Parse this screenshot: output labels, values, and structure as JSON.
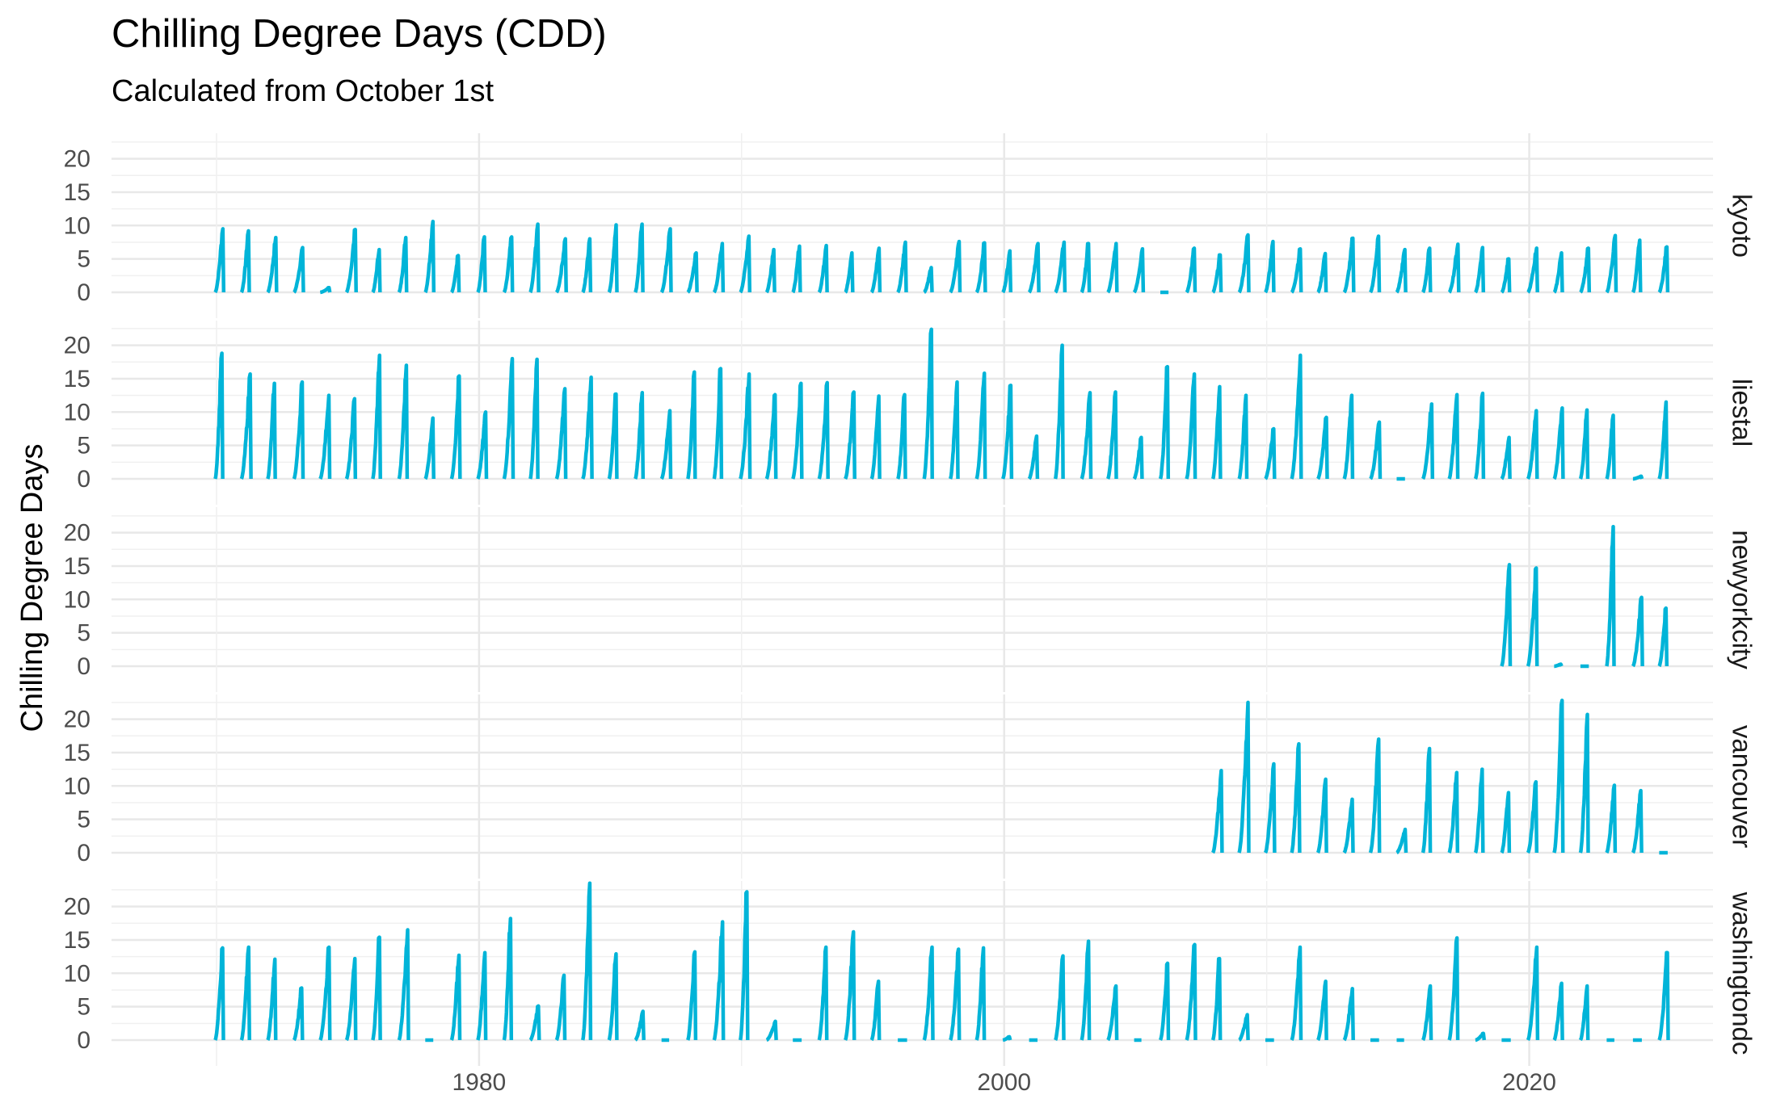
{
  "chart_data": {
    "type": "line",
    "title": "Chilling Degree Days (CDD)",
    "subtitle": "Calculated from October 1st",
    "xlabel": "",
    "ylabel": "Chilling Degree Days",
    "xlim": [
      1966,
      2027
    ],
    "ylim": [
      0,
      24
    ],
    "x_ticks": [
      1980,
      2000,
      2020
    ],
    "y_ticks": [
      0,
      5,
      10,
      15,
      20
    ],
    "grid": true,
    "legend": "none",
    "line_color": "#00B4D8",
    "facets": [
      {
        "name": "kyoto",
        "years": [
          1970,
          1971,
          1972,
          1973,
          1974,
          1975,
          1976,
          1977,
          1978,
          1979,
          1980,
          1981,
          1982,
          1983,
          1984,
          1985,
          1986,
          1987,
          1988,
          1989,
          1990,
          1991,
          1992,
          1993,
          1994,
          1995,
          1996,
          1997,
          1998,
          1999,
          2000,
          2001,
          2002,
          2003,
          2004,
          2005,
          2006,
          2007,
          2008,
          2009,
          2010,
          2011,
          2012,
          2013,
          2014,
          2015,
          2016,
          2017,
          2018,
          2019,
          2020,
          2021,
          2022,
          2023,
          2024,
          2025
        ],
        "peaks": [
          9.5,
          9.2,
          8.2,
          6.7,
          0.7,
          9.4,
          6.4,
          8.2,
          10.6,
          5.5,
          8.3,
          8.3,
          10.2,
          8.0,
          8.0,
          10.1,
          10.2,
          9.5,
          5.9,
          7.3,
          8.4,
          6.4,
          6.9,
          7.0,
          5.9,
          6.6,
          7.5,
          3.7,
          7.6,
          7.4,
          6.2,
          7.3,
          7.5,
          7.3,
          7.3,
          6.5,
          0.0,
          6.6,
          5.6,
          8.6,
          7.6,
          6.5,
          5.8,
          8.1,
          8.4,
          6.4,
          6.6,
          7.2,
          6.7,
          5.0,
          6.6,
          5.9,
          6.6,
          8.5,
          7.8,
          6.8
        ]
      },
      {
        "name": "liestal",
        "years": [
          1970,
          1971,
          1972,
          1973,
          1974,
          1975,
          1976,
          1977,
          1978,
          1979,
          1980,
          1981,
          1982,
          1983,
          1984,
          1985,
          1986,
          1987,
          1988,
          1989,
          1990,
          1991,
          1992,
          1993,
          1994,
          1995,
          1996,
          1997,
          1998,
          1999,
          2000,
          2001,
          2002,
          2003,
          2004,
          2005,
          2006,
          2007,
          2008,
          2009,
          2010,
          2011,
          2012,
          2013,
          2014,
          2015,
          2016,
          2017,
          2018,
          2019,
          2020,
          2021,
          2022,
          2023,
          2024,
          2025
        ],
        "peaks": [
          18.8,
          15.7,
          14.3,
          14.5,
          12.5,
          12.0,
          18.5,
          17.0,
          9.1,
          15.4,
          10.0,
          18.0,
          17.9,
          13.5,
          15.2,
          12.7,
          12.9,
          10.2,
          16.0,
          16.5,
          15.7,
          12.6,
          14.3,
          14.4,
          13.0,
          12.4,
          12.6,
          22.4,
          14.5,
          15.8,
          14.0,
          6.4,
          20.0,
          12.9,
          13.0,
          6.2,
          16.8,
          15.7,
          13.8,
          12.5,
          7.5,
          18.5,
          9.2,
          12.5,
          8.5,
          0.0,
          11.2,
          12.6,
          12.8,
          6.2,
          10.2,
          10.6,
          10.3,
          9.5,
          0.4,
          11.5
        ]
      },
      {
        "name": "newyorkcity",
        "years": [
          2019,
          2020,
          2021,
          2022,
          2023,
          2024,
          2025
        ],
        "peaks": [
          15.2,
          14.7,
          0.3,
          0.0,
          20.9,
          10.3,
          8.7
        ]
      },
      {
        "name": "vancouver",
        "years": [
          2008,
          2009,
          2010,
          2011,
          2012,
          2013,
          2014,
          2015,
          2016,
          2017,
          2018,
          2019,
          2020,
          2021,
          2022,
          2023,
          2024,
          2025
        ],
        "peaks": [
          12.3,
          22.5,
          13.3,
          16.3,
          11.0,
          8.0,
          17.0,
          3.5,
          15.6,
          12.0,
          12.5,
          9.0,
          10.6,
          22.8,
          20.7,
          10.1,
          9.3,
          0.0
        ]
      },
      {
        "name": "washingtondc",
        "years": [
          1970,
          1971,
          1972,
          1973,
          1974,
          1975,
          1976,
          1977,
          1978,
          1979,
          1980,
          1981,
          1982,
          1983,
          1984,
          1985,
          1986,
          1987,
          1988,
          1989,
          1990,
          1991,
          1992,
          1993,
          1994,
          1995,
          1996,
          1997,
          1998,
          1999,
          2000,
          2001,
          2002,
          2003,
          2004,
          2005,
          2006,
          2007,
          2008,
          2009,
          2010,
          2011,
          2012,
          2013,
          2014,
          2015,
          2016,
          2017,
          2018,
          2019,
          2020,
          2021,
          2022,
          2023,
          2024,
          2025
        ],
        "peaks": [
          13.8,
          13.9,
          12.1,
          7.8,
          13.9,
          12.2,
          15.4,
          16.5,
          0.0,
          12.7,
          13.1,
          18.2,
          5.1,
          9.7,
          23.5,
          12.9,
          4.3,
          0.0,
          13.2,
          17.7,
          22.2,
          2.8,
          0.0,
          13.9,
          16.2,
          8.8,
          0.0,
          13.9,
          13.6,
          13.8,
          0.5,
          0.0,
          12.6,
          14.8,
          8.1,
          0.0,
          11.5,
          14.3,
          12.2,
          3.8,
          0.0,
          13.9,
          8.8,
          7.7,
          0.0,
          0.0,
          8.1,
          15.3,
          1.0,
          0.0,
          13.9,
          8.5,
          8.1,
          0.0,
          0.0,
          13.1
        ]
      }
    ]
  }
}
